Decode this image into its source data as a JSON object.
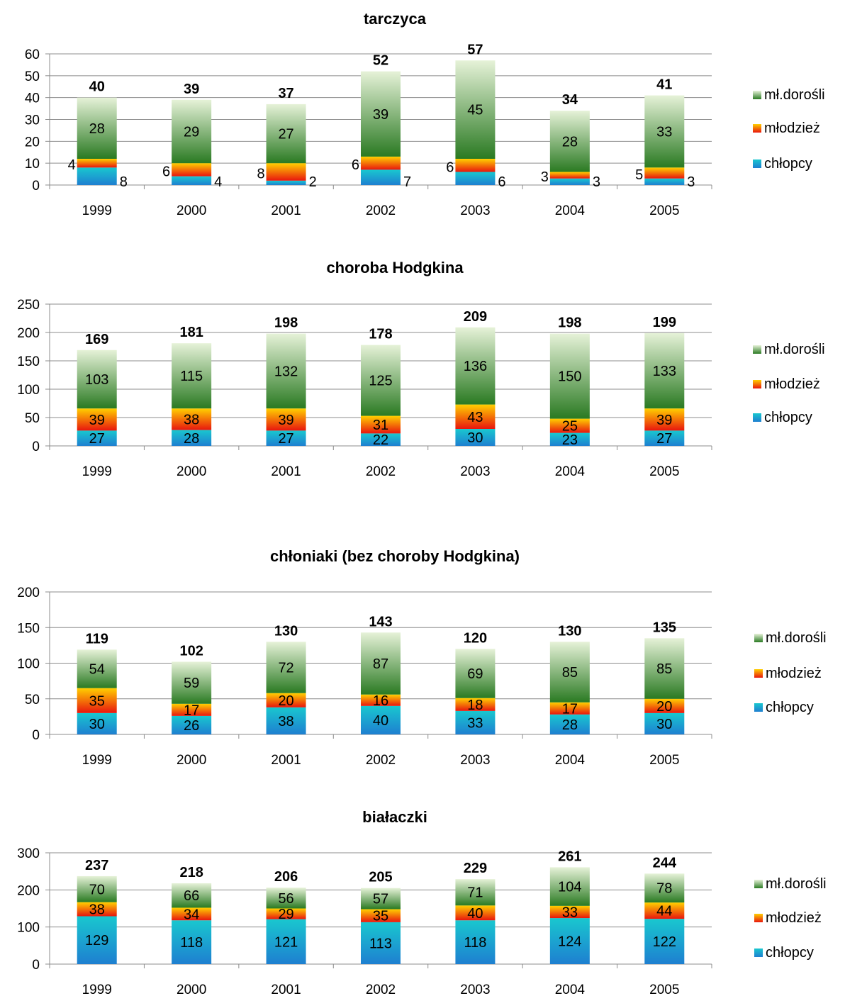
{
  "colors": {
    "chlopcy": [
      "#1e7fd0",
      "#19c7cf"
    ],
    "mlodziez": [
      "#e8160e",
      "#ffd000"
    ],
    "mldorosli": [
      "#2a7a22",
      "#e6f2d8"
    ]
  },
  "chart_data": [
    {
      "type": "bar",
      "stacked": true,
      "title": "tarczyca",
      "categories": [
        "1999",
        "2000",
        "2001",
        "2002",
        "2003",
        "2004",
        "2005"
      ],
      "ylim": [
        0,
        60
      ],
      "yticks": [
        "0",
        "10",
        "20",
        "30",
        "40",
        "50",
        "60"
      ],
      "grid": true,
      "legend_position": "right",
      "series": [
        {
          "name": "chłopcy",
          "values": [
            8,
            4,
            2,
            7,
            6,
            3,
            3
          ]
        },
        {
          "name": "młodzież",
          "values": [
            4,
            6,
            8,
            6,
            6,
            3,
            5
          ]
        },
        {
          "name": "mł.dorośli",
          "values": [
            28,
            29,
            27,
            39,
            45,
            28,
            33
          ]
        }
      ],
      "totals": [
        40,
        39,
        37,
        52,
        57,
        34,
        41
      ]
    },
    {
      "type": "bar",
      "stacked": true,
      "title": "choroba Hodgkina",
      "categories": [
        "1999",
        "2000",
        "2001",
        "2002",
        "2003",
        "2004",
        "2005"
      ],
      "ylim": [
        0,
        250
      ],
      "yticks": [
        "0",
        "50",
        "100",
        "150",
        "200",
        "250"
      ],
      "grid": true,
      "legend_position": "right",
      "series": [
        {
          "name": "chłopcy",
          "values": [
            27,
            28,
            27,
            22,
            30,
            23,
            27
          ]
        },
        {
          "name": "młodzież",
          "values": [
            39,
            38,
            39,
            31,
            43,
            25,
            39
          ]
        },
        {
          "name": "mł.dorośli",
          "values": [
            103,
            115,
            132,
            125,
            136,
            150,
            133
          ]
        }
      ],
      "totals": [
        169,
        181,
        198,
        178,
        209,
        198,
        199
      ]
    },
    {
      "type": "bar",
      "stacked": true,
      "title": "chłoniaki (bez choroby Hodgkina)",
      "categories": [
        "1999",
        "2000",
        "2001",
        "2002",
        "2003",
        "2004",
        "2005"
      ],
      "ylim": [
        0,
        200
      ],
      "yticks": [
        "0",
        "50",
        "100",
        "150",
        "200"
      ],
      "grid": true,
      "legend_position": "right",
      "series": [
        {
          "name": "chłopcy",
          "values": [
            30,
            26,
            38,
            40,
            33,
            28,
            30
          ]
        },
        {
          "name": "młodzież",
          "values": [
            35,
            17,
            20,
            16,
            18,
            17,
            20
          ]
        },
        {
          "name": "mł.dorośli",
          "values": [
            54,
            59,
            72,
            87,
            69,
            85,
            85
          ]
        }
      ],
      "totals": [
        119,
        102,
        130,
        143,
        120,
        130,
        135
      ]
    },
    {
      "type": "bar",
      "stacked": true,
      "title": "białaczki",
      "categories": [
        "1999",
        "2000",
        "2001",
        "2002",
        "2003",
        "2004",
        "2005"
      ],
      "ylim": [
        0,
        300
      ],
      "yticks": [
        "0",
        "100",
        "200",
        "300"
      ],
      "grid": true,
      "legend_position": "right",
      "series": [
        {
          "name": "chłopcy",
          "values": [
            129,
            118,
            121,
            113,
            118,
            124,
            122
          ]
        },
        {
          "name": "młodzież",
          "values": [
            38,
            34,
            29,
            35,
            40,
            33,
            44
          ]
        },
        {
          "name": "mł.dorośli",
          "values": [
            70,
            66,
            56,
            57,
            71,
            104,
            78
          ]
        }
      ],
      "totals": [
        237,
        218,
        206,
        205,
        229,
        261,
        244
      ]
    }
  ]
}
